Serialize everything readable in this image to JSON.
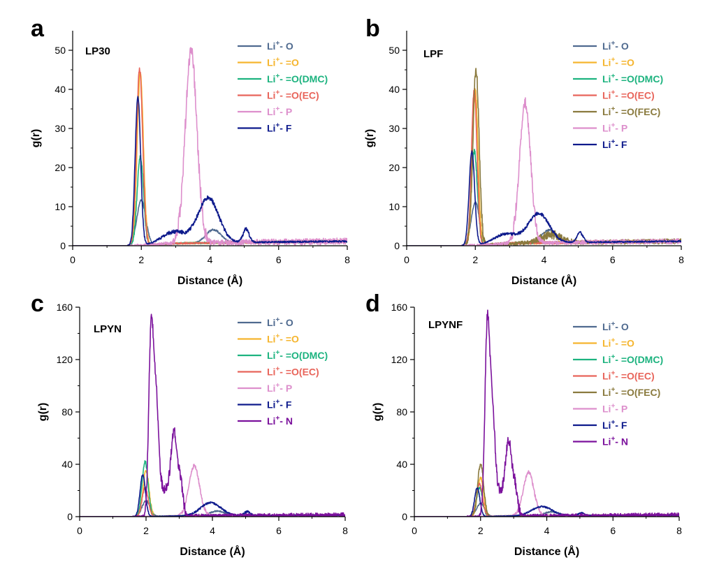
{
  "colors": {
    "O": "#4f6a8f",
    "dO": "#f5b52e",
    "DMC": "#1db37f",
    "EC": "#e8645a",
    "FEC": "#8a7a3e",
    "P": "#dd8fcc",
    "F": "#0d1a8c",
    "N": "#7b119c"
  },
  "chart_data": [
    {
      "panel": "a",
      "type": "line",
      "title": "LP30",
      "xlabel": "Distance (Å)",
      "ylabel": "g(r)",
      "xlim": [
        0,
        8
      ],
      "ylim": [
        0,
        55
      ],
      "xticks": [
        "0",
        "2",
        "4",
        "6",
        "8"
      ],
      "yticks": [
        "0",
        "10",
        "20",
        "30",
        "40",
        "50"
      ],
      "series": [
        {
          "name": "Li+- O",
          "key": "O",
          "peaks": [
            [
              2.0,
              11.5,
              0.13
            ],
            [
              4.1,
              3.3,
              0.22
            ]
          ],
          "noise": 0.5
        },
        {
          "name": "Li+- =O",
          "key": "dO",
          "peaks": [
            [
              1.97,
              44,
              0.09
            ]
          ],
          "noise": 1.5
        },
        {
          "name": "Li+- =O(DMC)",
          "key": "DMC",
          "peaks": [
            [
              1.97,
              23,
              0.09
            ]
          ],
          "noise": 1.5
        },
        {
          "name": "Li+- =O(EC)",
          "key": "EC",
          "peaks": [
            [
              1.95,
              45,
              0.09
            ]
          ],
          "noise": 1.5
        },
        {
          "name": "Li+- P",
          "key": "P",
          "peaks": [
            [
              3.45,
              49,
              0.17
            ]
          ],
          "noise": 4.0
        },
        {
          "name": "Li+- F",
          "key": "F",
          "peaks": [
            [
              1.9,
              38,
              0.08
            ],
            [
              2.95,
              3,
              0.35
            ],
            [
              3.95,
              11.5,
              0.3
            ],
            [
              5.05,
              3.3,
              0.09
            ]
          ],
          "noise": 1.0
        }
      ]
    },
    {
      "panel": "b",
      "type": "line",
      "title": "LPF",
      "xlabel": "Distance (Å)",
      "ylabel": "g(r)",
      "xlim": [
        0,
        8
      ],
      "ylim": [
        0,
        55
      ],
      "xticks": [
        "0",
        "2",
        "4",
        "6",
        "8"
      ],
      "yticks": [
        "0",
        "10",
        "20",
        "30",
        "40",
        "50"
      ],
      "series": [
        {
          "name": "Li+- O",
          "key": "O",
          "peaks": [
            [
              2.0,
              11,
              0.12
            ],
            [
              4.15,
              3.2,
              0.22
            ]
          ],
          "noise": 0.5
        },
        {
          "name": "Li+- =O",
          "key": "dO",
          "peaks": [
            [
              2.0,
              40,
              0.08
            ]
          ],
          "noise": 2.0
        },
        {
          "name": "Li+- =O(DMC)",
          "key": "DMC",
          "peaks": [
            [
              1.97,
              24,
              0.09
            ]
          ],
          "noise": 1.5
        },
        {
          "name": "Li+- =O(EC)",
          "key": "EC",
          "peaks": [
            [
              1.97,
              40,
              0.08
            ]
          ],
          "noise": 2.0
        },
        {
          "name": "Li+- =O(FEC)",
          "key": "FEC",
          "peaks": [
            [
              2.02,
              45,
              0.09
            ],
            [
              4.2,
              2,
              0.3
            ]
          ],
          "noise": 3.0
        },
        {
          "name": "Li+- P",
          "key": "P",
          "peaks": [
            [
              3.45,
              36,
              0.16
            ]
          ],
          "noise": 3.0
        },
        {
          "name": "Li+- F",
          "key": "F",
          "peaks": [
            [
              1.9,
              24,
              0.08
            ],
            [
              2.9,
              2.5,
              0.35
            ],
            [
              3.85,
              7.5,
              0.3
            ],
            [
              5.05,
              2.5,
              0.09
            ]
          ],
          "noise": 0.8
        }
      ]
    },
    {
      "panel": "c",
      "type": "line",
      "title": "LPYN",
      "xlabel": "Distance (Å)",
      "ylabel": "g(r)",
      "xlim": [
        0,
        8
      ],
      "ylim": [
        0,
        160
      ],
      "xticks": [
        "0",
        "2",
        "4",
        "6",
        "8"
      ],
      "yticks": [
        "0",
        "40",
        "80",
        "120",
        "160"
      ],
      "series": [
        {
          "name": "Li+- O",
          "key": "O",
          "peaks": [
            [
              2.0,
              12,
              0.12
            ],
            [
              4.15,
              3.5,
              0.22
            ]
          ],
          "noise": 1.0
        },
        {
          "name": "Li+- =O",
          "key": "dO",
          "peaks": [
            [
              2.0,
              35,
              0.09
            ]
          ],
          "noise": 3.0
        },
        {
          "name": "Li+- =O(DMC)",
          "key": "DMC",
          "peaks": [
            [
              1.97,
              42,
              0.09
            ]
          ],
          "noise": 3.0
        },
        {
          "name": "Li+- =O(EC)",
          "key": "EC",
          "peaks": [
            [
              1.97,
              22,
              0.09
            ]
          ],
          "noise": 2.0
        },
        {
          "name": "Li+- P",
          "key": "P",
          "peaks": [
            [
              3.45,
              38,
              0.16
            ]
          ],
          "noise": 3.0
        },
        {
          "name": "Li+- F",
          "key": "F",
          "peaks": [
            [
              1.9,
              32,
              0.08
            ],
            [
              3.95,
              10,
              0.3
            ],
            [
              5.05,
              3,
              0.09
            ]
          ],
          "noise": 1.5
        },
        {
          "name": "Li+- N",
          "key": "N",
          "peaks": [
            [
              2.15,
              135,
              0.07
            ],
            [
              2.3,
              85,
              0.08
            ],
            [
              2.55,
              20,
              0.15
            ],
            [
              2.85,
              62,
              0.1
            ],
            [
              3.05,
              20,
              0.07
            ]
          ],
          "noise": 8.0
        }
      ]
    },
    {
      "panel": "d",
      "type": "line",
      "title": "LPYNF",
      "xlabel": "Distance (Å)",
      "ylabel": "g(r)",
      "xlim": [
        0,
        8
      ],
      "ylim": [
        0,
        160
      ],
      "xticks": [
        "0",
        "2",
        "4",
        "6",
        "8"
      ],
      "yticks": [
        "0",
        "40",
        "80",
        "120",
        "160"
      ],
      "series": [
        {
          "name": "Li+- O",
          "key": "O",
          "peaks": [
            [
              2.0,
              10,
              0.12
            ],
            [
              4.15,
              3,
              0.22
            ]
          ],
          "noise": 1.0
        },
        {
          "name": "Li+- =O",
          "key": "dO",
          "peaks": [
            [
              2.0,
              30,
              0.09
            ]
          ],
          "noise": 3.0
        },
        {
          "name": "Li+- =O(DMC)",
          "key": "DMC",
          "peaks": [
            [
              1.97,
              22,
              0.09
            ]
          ],
          "noise": 2.0
        },
        {
          "name": "Li+- =O(EC)",
          "key": "EC",
          "peaks": [
            [
              1.97,
              25,
              0.09
            ]
          ],
          "noise": 2.0
        },
        {
          "name": "Li+- =O(FEC)",
          "key": "FEC",
          "peaks": [
            [
              2.0,
              40,
              0.09
            ]
          ],
          "noise": 3.5
        },
        {
          "name": "Li+- P",
          "key": "P",
          "peaks": [
            [
              3.45,
              33,
              0.16
            ]
          ],
          "noise": 3.0
        },
        {
          "name": "Li+- F",
          "key": "F",
          "peaks": [
            [
              1.9,
              22,
              0.08
            ],
            [
              3.85,
              7,
              0.3
            ],
            [
              5.05,
              2,
              0.09
            ]
          ],
          "noise": 1.2
        },
        {
          "name": "Li+- N",
          "key": "N",
          "peaks": [
            [
              2.2,
              138,
              0.07
            ],
            [
              2.35,
              75,
              0.08
            ],
            [
              2.55,
              18,
              0.15
            ],
            [
              2.85,
              55,
              0.1
            ],
            [
              3.05,
              18,
              0.07
            ]
          ],
          "noise": 8.0
        }
      ]
    }
  ]
}
